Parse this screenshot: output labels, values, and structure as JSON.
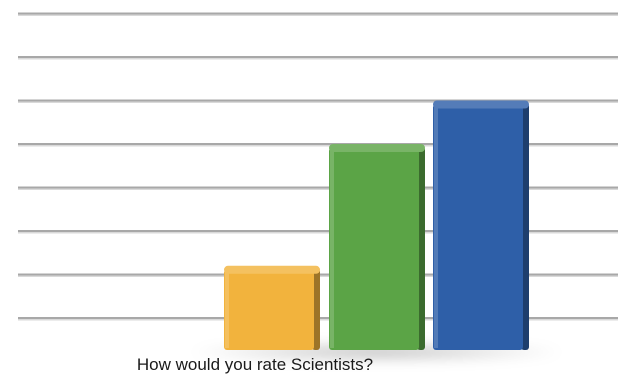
{
  "chart_data": {
    "type": "bar",
    "title": "",
    "xlabel": "How would you rate Scientists?",
    "ylabel": "",
    "categories": [
      "",
      "",
      ""
    ],
    "values": [
      1.2,
      4.0,
      5.0
    ],
    "ylim": [
      0,
      7
    ],
    "grid": true,
    "legend": "none",
    "colors": [
      "#F2B33D",
      "#5BA446",
      "#2E5FA8"
    ]
  }
}
